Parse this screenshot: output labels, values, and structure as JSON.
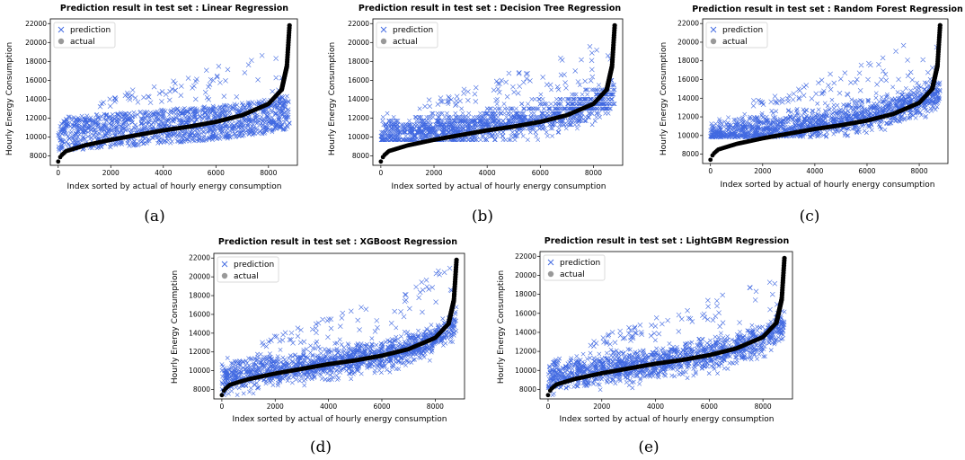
{
  "chart_data": [
    {
      "type": "scatter",
      "title": "Prediction result in test set : Linear Regression",
      "caption": "(a)",
      "xlabel": "Index sorted by actual of hourly energy consumption",
      "ylabel": "Hourly Energy Consumption",
      "xlim": [
        -300,
        9100
      ],
      "ylim": [
        7000,
        22500
      ],
      "xticks": [
        0,
        2000,
        4000,
        6000,
        8000
      ],
      "yticks": [
        8000,
        10000,
        12000,
        14000,
        16000,
        18000,
        20000,
        22000
      ],
      "legend": "top-left",
      "series": [
        {
          "name": "prediction",
          "marker": "x",
          "color": "#4169e1",
          "x": [
            0,
            1000,
            2000,
            3000,
            4000,
            5000,
            6000,
            7000,
            8000,
            8800
          ],
          "y": [
            10300,
            10500,
            10700,
            10900,
            11100,
            11300,
            11500,
            11800,
            12200,
            12700
          ]
        },
        {
          "name": "actual",
          "marker": "o",
          "color": "#000000",
          "x": [
            0,
            100,
            300,
            1000,
            2000,
            3000,
            4000,
            5000,
            6000,
            7000,
            8000,
            8500,
            8700,
            8800
          ],
          "y": [
            7400,
            8000,
            8500,
            9100,
            9700,
            10200,
            10700,
            11100,
            11600,
            12300,
            13500,
            15000,
            17500,
            21800
          ]
        }
      ]
    },
    {
      "type": "scatter",
      "title": "Prediction result in test set : Decision Tree Regression",
      "caption": "(b)",
      "xlabel": "Index sorted by actual of hourly energy consumption",
      "ylabel": "Hourly Energy Consumption",
      "xlim": [
        -300,
        9100
      ],
      "ylim": [
        7000,
        22500
      ],
      "xticks": [
        0,
        2000,
        4000,
        6000,
        8000
      ],
      "yticks": [
        8000,
        10000,
        12000,
        14000,
        16000,
        18000,
        20000,
        22000
      ],
      "legend": "top-left",
      "series": [
        {
          "name": "prediction",
          "marker": "x",
          "color": "#4169e1",
          "x": [
            0,
            1000,
            2000,
            3000,
            4000,
            5000,
            6000,
            7000,
            8000,
            8800
          ],
          "y": [
            10200,
            10400,
            10600,
            10900,
            11200,
            11600,
            12100,
            12700,
            13500,
            14500
          ]
        },
        {
          "name": "actual",
          "marker": "o",
          "color": "#000000",
          "x": [
            0,
            100,
            300,
            1000,
            2000,
            3000,
            4000,
            5000,
            6000,
            7000,
            8000,
            8500,
            8700,
            8800
          ],
          "y": [
            7400,
            8000,
            8500,
            9100,
            9700,
            10200,
            10700,
            11100,
            11600,
            12300,
            13500,
            15000,
            17500,
            21800
          ]
        }
      ]
    },
    {
      "type": "scatter",
      "title": "Prediction result in test set : Random Forest Regression",
      "caption": "(c)",
      "xlabel": "Index sorted by actual of hourly energy consumption",
      "ylabel": "Hourly Energy Consumption",
      "xlim": [
        -300,
        9100
      ],
      "ylim": [
        7000,
        22500
      ],
      "xticks": [
        0,
        2000,
        4000,
        6000,
        8000
      ],
      "yticks": [
        8000,
        10000,
        12000,
        14000,
        16000,
        18000,
        20000,
        22000
      ],
      "legend": "top-left",
      "series": [
        {
          "name": "prediction",
          "marker": "x",
          "color": "#4169e1",
          "x": [
            0,
            1000,
            2000,
            3000,
            4000,
            5000,
            6000,
            7000,
            8000,
            8800
          ],
          "y": [
            10000,
            10300,
            10600,
            10900,
            11300,
            11700,
            12200,
            12800,
            13600,
            14700
          ]
        },
        {
          "name": "actual",
          "marker": "o",
          "color": "#000000",
          "x": [
            0,
            100,
            300,
            1000,
            2000,
            3000,
            4000,
            5000,
            6000,
            7000,
            8000,
            8500,
            8700,
            8800
          ],
          "y": [
            7400,
            8000,
            8500,
            9100,
            9700,
            10200,
            10700,
            11100,
            11600,
            12300,
            13500,
            15000,
            17500,
            21800
          ]
        }
      ]
    },
    {
      "type": "scatter",
      "title": "Prediction result in test set : XGBoost Regression",
      "caption": "(d)",
      "xlabel": "Index sorted by actual of hourly energy consumption",
      "ylabel": "Hourly Energy Consumption",
      "xlim": [
        -300,
        9100
      ],
      "ylim": [
        7000,
        22500
      ],
      "xticks": [
        0,
        2000,
        4000,
        6000,
        8000
      ],
      "yticks": [
        8000,
        10000,
        12000,
        14000,
        16000,
        18000,
        20000,
        22000
      ],
      "legend": "top-left",
      "series": [
        {
          "name": "prediction",
          "marker": "x",
          "color": "#4169e1",
          "x": [
            0,
            1000,
            2000,
            3000,
            4000,
            5000,
            6000,
            7000,
            8000,
            8800
          ],
          "y": [
            9200,
            9700,
            10100,
            10500,
            10900,
            11300,
            11700,
            12300,
            13300,
            15000
          ]
        },
        {
          "name": "actual",
          "marker": "o",
          "color": "#000000",
          "x": [
            0,
            100,
            300,
            1000,
            2000,
            3000,
            4000,
            5000,
            6000,
            7000,
            8000,
            8500,
            8700,
            8800
          ],
          "y": [
            7400,
            8000,
            8500,
            9100,
            9700,
            10200,
            10700,
            11100,
            11600,
            12300,
            13500,
            15000,
            17500,
            21800
          ]
        }
      ]
    },
    {
      "type": "scatter",
      "title": "Prediction result in test set : LightGBM Regression",
      "caption": "(e)",
      "xlabel": "Index sorted by actual of hourly energy consumption",
      "ylabel": "Hourly Energy Consumption",
      "xlim": [
        -300,
        9100
      ],
      "ylim": [
        7000,
        22500
      ],
      "xticks": [
        0,
        2000,
        4000,
        6000,
        8000
      ],
      "yticks": [
        8000,
        10000,
        12000,
        14000,
        16000,
        18000,
        20000,
        22000
      ],
      "legend": "top-left",
      "series": [
        {
          "name": "prediction",
          "marker": "x",
          "color": "#4169e1",
          "x": [
            0,
            1000,
            2000,
            3000,
            4000,
            5000,
            6000,
            7000,
            8000,
            8800
          ],
          "y": [
            9200,
            9700,
            10100,
            10500,
            10900,
            11300,
            11700,
            12300,
            13300,
            15000
          ]
        },
        {
          "name": "actual",
          "marker": "o",
          "color": "#000000",
          "x": [
            0,
            100,
            300,
            1000,
            2000,
            3000,
            4000,
            5000,
            6000,
            7000,
            8000,
            8500,
            8700,
            8800
          ],
          "y": [
            7400,
            8000,
            8500,
            9100,
            9700,
            10200,
            10700,
            11100,
            11600,
            12300,
            13500,
            15000,
            17500,
            21800
          ]
        }
      ]
    }
  ]
}
